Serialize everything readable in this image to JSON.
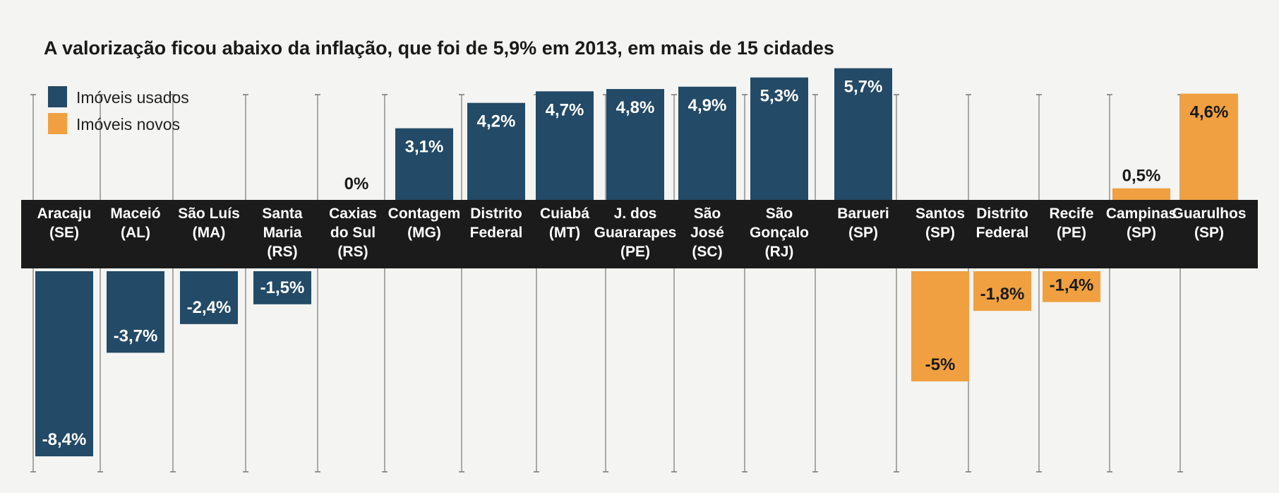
{
  "chart_data": {
    "type": "bar",
    "title": "A valorização ficou abaixo da inflação, que foi de 5,9% em 2013, em mais de 15 cidades",
    "unit": "%",
    "legend": [
      {
        "label": "Imóveis usados",
        "color": "#234a66"
      },
      {
        "label": "Imóveis novos",
        "color": "#f0a040"
      }
    ],
    "categories": [
      {
        "name": "Aracaju (SE)",
        "lines": [
          "Aracaju",
          "(SE)"
        ],
        "series": "Imóveis usados",
        "value": -8.4,
        "label": "-8,4%"
      },
      {
        "name": "Maceió (AL)",
        "lines": [
          "Maceió",
          "(AL)"
        ],
        "series": "Imóveis usados",
        "value": -3.7,
        "label": "-3,7%"
      },
      {
        "name": "São Luís (MA)",
        "lines": [
          "São Luís",
          "(MA)"
        ],
        "series": "Imóveis usados",
        "value": -2.4,
        "label": "-2,4%"
      },
      {
        "name": "Santa Maria (RS)",
        "lines": [
          "Santa",
          "Maria",
          "(RS)"
        ],
        "series": "Imóveis usados",
        "value": -1.5,
        "label": "-1,5%"
      },
      {
        "name": "Caxias do Sul (RS)",
        "lines": [
          "Caxias",
          "do Sul",
          "(RS)"
        ],
        "series": "Imóveis usados",
        "value": 0,
        "label": "0%"
      },
      {
        "name": "Contagem (MG)",
        "lines": [
          "Contagem",
          "(MG)"
        ],
        "series": "Imóveis usados",
        "value": 3.1,
        "label": "3,1%"
      },
      {
        "name": "Distrito Federal",
        "lines": [
          "Distrito",
          "Federal"
        ],
        "series": "Imóveis usados",
        "value": 4.2,
        "label": "4,2%"
      },
      {
        "name": "Cuiabá (MT)",
        "lines": [
          "Cuiabá",
          "(MT)"
        ],
        "series": "Imóveis usados",
        "value": 4.7,
        "label": "4,7%"
      },
      {
        "name": "J. dos Guararapes (PE)",
        "lines": [
          "J. dos",
          "Guararapes",
          "(PE)"
        ],
        "series": "Imóveis usados",
        "value": 4.8,
        "label": "4,8%"
      },
      {
        "name": "São José (SC)",
        "lines": [
          "São",
          "José",
          "(SC)"
        ],
        "series": "Imóveis usados",
        "value": 4.9,
        "label": "4,9%"
      },
      {
        "name": "São Gonçalo (RJ)",
        "lines": [
          "São",
          "Gonçalo",
          "(RJ)"
        ],
        "series": "Imóveis usados",
        "value": 5.3,
        "label": "5,3%"
      },
      {
        "name": "Barueri (SP)",
        "lines": [
          "Barueri",
          "(SP)"
        ],
        "series": "Imóveis usados",
        "value": 5.7,
        "label": "5,7%"
      },
      {
        "name": "Santos (SP)",
        "lines": [
          "Santos",
          "(SP)"
        ],
        "series": "Imóveis novos",
        "value": -5,
        "label": "-5%"
      },
      {
        "name": "Distrito Federal",
        "lines": [
          "Distrito",
          "Federal"
        ],
        "series": "Imóveis novos",
        "value": -1.8,
        "label": "-1,8%"
      },
      {
        "name": "Recife (PE)",
        "lines": [
          "Recife",
          "(PE)"
        ],
        "series": "Imóveis novos",
        "value": -1.4,
        "label": "-1,4%"
      },
      {
        "name": "Campinas (SP)",
        "lines": [
          "Campinas",
          "(SP)"
        ],
        "series": "Imóveis novos",
        "value": 0.5,
        "label": "0,5%"
      },
      {
        "name": "Guarulhos (SP)",
        "lines": [
          "Guarulhos",
          "(SP)"
        ],
        "series": "Imóveis novos",
        "value": 4.6,
        "label": "4,6%"
      }
    ],
    "ylim": [
      -8.4,
      5.9
    ],
    "grid": false
  }
}
